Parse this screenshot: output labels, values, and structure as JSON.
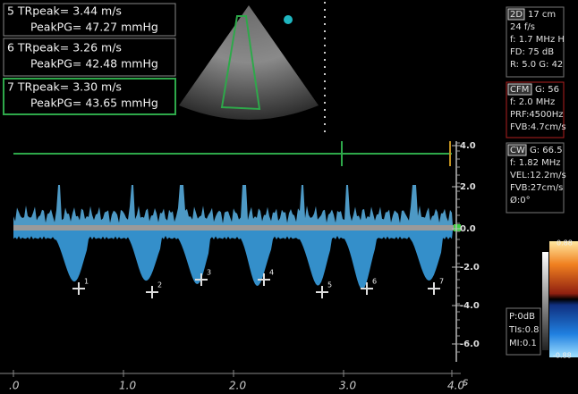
{
  "measurements": [
    {
      "line1": "5 TRpeak= 3.44 m/s",
      "line2": "PeakPG= 47.27 mmHg"
    },
    {
      "line1": "6 TRpeak= 3.26 m/s",
      "line2": "PeakPG= 42.48 mmHg"
    },
    {
      "line1": "7 TRpeak= 3.30 m/s",
      "line2": "PeakPG= 43.65 mmHg"
    }
  ],
  "panels": {
    "twod": {
      "mode": "2D",
      "lines": [
        "17 cm",
        "24 f/s",
        "f: 1.7 MHz H",
        "FD: 75 dB",
        "R: 5.0   G: 42"
      ]
    },
    "cfm": {
      "mode": "CFM",
      "lines": [
        "G: 56",
        "f: 2.0 MHz",
        "PRF:4500Hz",
        "FVB:4.7cm/s"
      ]
    },
    "cw": {
      "mode": "CW",
      "lines": [
        "G: 66.5",
        "f: 1.82 MHz",
        "VEL:12.2m/s",
        "FVB:27cm/s",
        "Ø:0°"
      ]
    },
    "power": [
      "P:0dB",
      "TIs:0.8",
      "MI:0.1"
    ]
  },
  "velocity_scale": [
    "4.0",
    "2.0",
    "0.0",
    "-2.0",
    "-4.0",
    "-6.0"
  ],
  "time_axis": {
    "labels": [
      ".0",
      "1.0",
      "2.0",
      "3.0",
      "4.0"
    ],
    "unit": "s"
  },
  "color_bar": {
    "top": "0.88",
    "bottom": "-0.88"
  },
  "markers": [
    "1",
    "2",
    "3",
    "4",
    "5",
    "6",
    "7"
  ]
}
